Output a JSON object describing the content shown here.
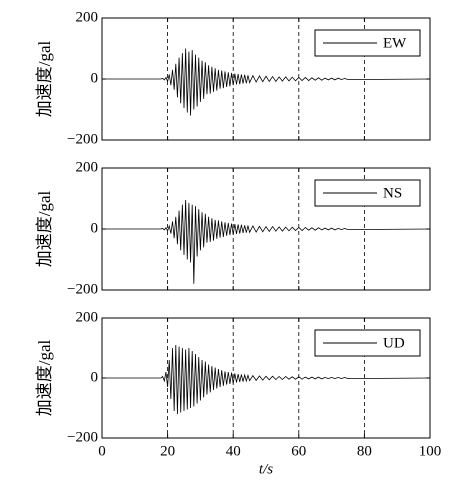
{
  "chart_data": [
    {
      "type": "line",
      "ylabel": "加速度/gal",
      "legend": "upper right",
      "grid": "dashed",
      "xlim": [
        0,
        100
      ],
      "xticks": [
        20,
        40,
        60,
        80
      ],
      "ylim": [
        -200,
        200
      ],
      "yticks": [
        {
          "value": -200,
          "label": "−200"
        },
        0,
        200
      ],
      "x": [
        0,
        18,
        18.5,
        19,
        19.5,
        20,
        20.5,
        21,
        21.5,
        22,
        22.5,
        23,
        23.5,
        24,
        24.5,
        25,
        25.5,
        26,
        26.5,
        27,
        27.5,
        28,
        28.5,
        29,
        29.5,
        30,
        30.5,
        31,
        31.5,
        32,
        32.5,
        33,
        33.5,
        34,
        34.5,
        35,
        35.5,
        36,
        36.5,
        37,
        37.5,
        38,
        38.5,
        39,
        39.5,
        40,
        40.5,
        41,
        41.5,
        42,
        42.5,
        43,
        43.5,
        44,
        44.5,
        45,
        46,
        47,
        48,
        49,
        50,
        51,
        52,
        53,
        54,
        55,
        56,
        57,
        58,
        59,
        60,
        61,
        62,
        63,
        64,
        65,
        66,
        67,
        68,
        69,
        70,
        71,
        72,
        73,
        74,
        75,
        100
      ],
      "series": [
        {
          "name": "EW",
          "color": "#000000",
          "values": [
            0,
            0,
            2,
            -3,
            5,
            -8,
            15,
            -20,
            30,
            -35,
            50,
            -60,
            70,
            -80,
            85,
            -95,
            100,
            -110,
            90,
            -120,
            95,
            -100,
            80,
            -90,
            70,
            -75,
            60,
            -65,
            55,
            -50,
            45,
            -48,
            40,
            -42,
            35,
            -38,
            30,
            -32,
            28,
            -30,
            25,
            -26,
            22,
            -24,
            20,
            -20,
            18,
            -18,
            16,
            -17,
            15,
            -15,
            14,
            -14,
            12,
            -12,
            11,
            -10,
            10,
            -9,
            9,
            -8,
            8,
            -8,
            7,
            -7,
            7,
            -6,
            6,
            -6,
            5,
            -5,
            5,
            -5,
            4,
            -4,
            4,
            -4,
            3,
            -3,
            3,
            -3,
            3,
            -2,
            2,
            -2,
            0
          ]
        }
      ]
    },
    {
      "type": "line",
      "ylabel": "加速度/gal",
      "legend": "upper right",
      "grid": "dashed",
      "xlim": [
        0,
        100
      ],
      "xticks": [
        20,
        40,
        60,
        80
      ],
      "ylim": [
        -200,
        200
      ],
      "yticks": [
        {
          "value": -200,
          "label": "−200"
        },
        0,
        200
      ],
      "x": [
        0,
        18,
        18.5,
        19,
        19.5,
        20,
        20.5,
        21,
        21.5,
        22,
        22.5,
        23,
        23.5,
        24,
        24.5,
        25,
        25.5,
        26,
        26.5,
        27,
        27.5,
        28,
        28.5,
        29,
        29.5,
        30,
        30.5,
        31,
        31.5,
        32,
        32.5,
        33,
        33.5,
        34,
        34.5,
        35,
        35.5,
        36,
        36.5,
        37,
        37.5,
        38,
        38.5,
        39,
        39.5,
        40,
        40.5,
        41,
        41.5,
        42,
        42.5,
        43,
        43.5,
        44,
        44.5,
        45,
        46,
        47,
        48,
        49,
        50,
        51,
        52,
        53,
        54,
        55,
        56,
        57,
        58,
        59,
        60,
        61,
        62,
        63,
        64,
        65,
        66,
        67,
        68,
        69,
        70,
        71,
        72,
        73,
        74,
        75,
        100
      ],
      "series": [
        {
          "name": "NS",
          "color": "#000000",
          "values": [
            0,
            0,
            2,
            -3,
            4,
            -6,
            10,
            -15,
            25,
            -30,
            40,
            -50,
            60,
            -70,
            80,
            -85,
            95,
            -100,
            85,
            -110,
            80,
            -180,
            75,
            -90,
            65,
            -70,
            55,
            -60,
            50,
            -45,
            40,
            -42,
            35,
            -38,
            30,
            -32,
            28,
            -28,
            25,
            -26,
            22,
            -22,
            20,
            -20,
            18,
            -18,
            16,
            -16,
            15,
            -15,
            14,
            -13,
            12,
            -12,
            11,
            -11,
            10,
            -10,
            9,
            -9,
            8,
            -8,
            8,
            -7,
            7,
            -7,
            6,
            -6,
            6,
            -5,
            5,
            -5,
            5,
            -4,
            4,
            -4,
            4,
            -3,
            3,
            -3,
            3,
            -3,
            2,
            -2,
            2,
            -2,
            0
          ]
        }
      ]
    },
    {
      "type": "line",
      "ylabel": "加速度/gal",
      "xlabel": "t/s",
      "legend": "upper right",
      "grid": "dashed",
      "xlim": [
        0,
        100
      ],
      "xticks": [
        0,
        20,
        40,
        60,
        80,
        100
      ],
      "ylim": [
        -200,
        200
      ],
      "yticks": [
        {
          "value": -200,
          "label": "−200"
        },
        0,
        200
      ],
      "x": [
        0,
        18,
        18.5,
        19,
        19.5,
        20,
        20.5,
        21,
        21.5,
        22,
        22.5,
        23,
        23.5,
        24,
        24.5,
        25,
        25.5,
        26,
        26.5,
        27,
        27.5,
        28,
        28.5,
        29,
        29.5,
        30,
        30.5,
        31,
        31.5,
        32,
        32.5,
        33,
        33.5,
        34,
        34.5,
        35,
        35.5,
        36,
        36.5,
        37,
        37.5,
        38,
        38.5,
        39,
        39.5,
        40,
        40.5,
        41,
        41.5,
        42,
        42.5,
        43,
        43.5,
        44,
        44.5,
        45,
        46,
        47,
        48,
        49,
        50,
        51,
        52,
        53,
        54,
        55,
        56,
        57,
        58,
        59,
        60,
        61,
        62,
        63,
        64,
        65,
        66,
        67,
        68,
        69,
        70,
        71,
        72,
        73,
        74,
        75,
        100
      ],
      "series": [
        {
          "name": "UD",
          "color": "#000000",
          "values": [
            0,
            0,
            5,
            -10,
            20,
            -30,
            60,
            -70,
            100,
            -110,
            110,
            -120,
            105,
            -115,
            100,
            -110,
            95,
            -105,
            100,
            -100,
            90,
            -95,
            80,
            -85,
            70,
            -75,
            60,
            -65,
            55,
            -55,
            45,
            -48,
            40,
            -40,
            35,
            -35,
            30,
            -30,
            26,
            -26,
            22,
            -22,
            20,
            -20,
            18,
            -18,
            15,
            -15,
            13,
            -13,
            12,
            -12,
            10,
            -10,
            9,
            -9,
            8,
            -8,
            7,
            -7,
            6,
            -6,
            6,
            -5,
            5,
            -5,
            5,
            -4,
            4,
            -4,
            4,
            -4,
            3,
            -3,
            3,
            -3,
            3,
            -3,
            2,
            -2,
            2,
            -2,
            2,
            -2,
            2,
            -2,
            0
          ]
        }
      ]
    }
  ]
}
